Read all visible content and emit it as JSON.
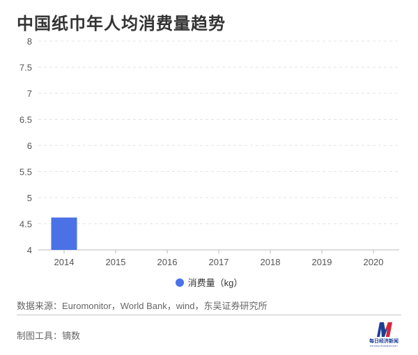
{
  "chart_data": {
    "type": "bar",
    "title": "中国纸巾年人均消费量趋势",
    "categories": [
      "2014",
      "2015",
      "2016",
      "2017",
      "2018",
      "2019",
      "2020"
    ],
    "series": [
      {
        "name": "消费量（kg）",
        "color": "#4a72e6",
        "values": [
          4.62,
          null,
          null,
          null,
          null,
          null,
          null
        ]
      }
    ],
    "ylim": [
      4,
      8
    ],
    "yticks": [
      "4",
      "4.5",
      "5",
      "5.5",
      "6",
      "6.5",
      "7",
      "7.5",
      "8"
    ],
    "grid": true,
    "legend": "bottom"
  },
  "footer": {
    "source": "数据来源：Euromonitor，World Bank，wind，东吴证券研究所",
    "tool": "制图工具：镝数",
    "logo_text": "每日经济新闻",
    "logo_sub": "NATIONAL BUSINESS DAILY"
  }
}
